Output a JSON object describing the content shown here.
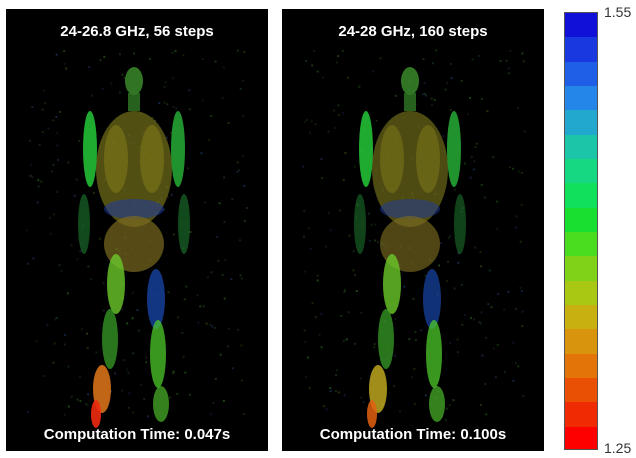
{
  "panels": [
    {
      "title": "24-26.8 GHz, 56 steps",
      "footer": "Computation Time: 0.047s"
    },
    {
      "title": "24-28 GHz, 160 steps",
      "footer": "Computation Time: 0.100s"
    }
  ],
  "colorbar": {
    "max_label": "1.55",
    "min_label": "1.25",
    "colors_top_to_bottom": [
      "#1010d8",
      "#1a38e0",
      "#1f5ee6",
      "#2386e8",
      "#22a8cf",
      "#1cc4a8",
      "#16d882",
      "#10e05a",
      "#18e030",
      "#4adc1e",
      "#80d218",
      "#a8c814",
      "#c8b010",
      "#d8940c",
      "#e27408",
      "#ea5004",
      "#f02a02",
      "#ff0000"
    ]
  }
}
